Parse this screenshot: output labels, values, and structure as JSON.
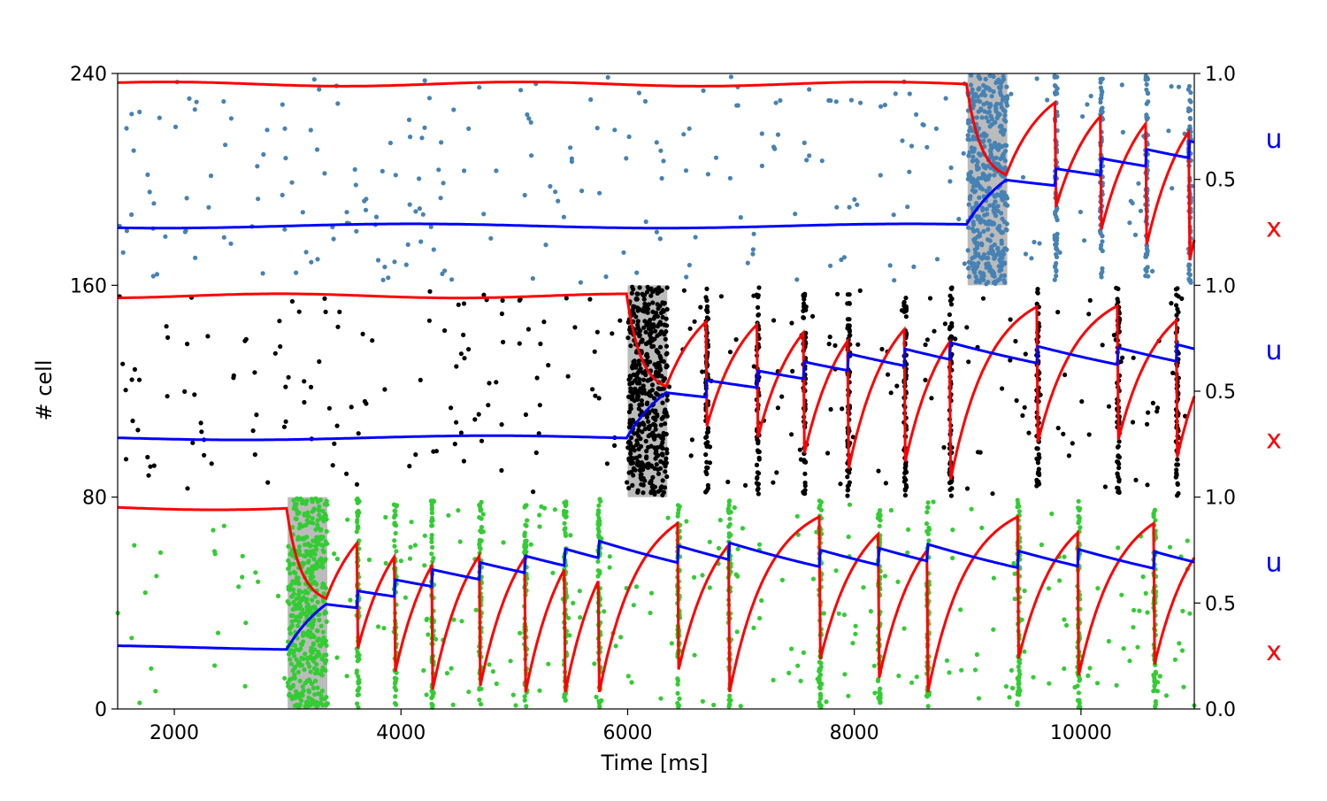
{
  "chart_data": {
    "type": "scatter",
    "xlabel": "Time [ms]",
    "ylabel": "# cell",
    "xlim": [
      1500,
      11000
    ],
    "ylim": [
      0,
      240
    ],
    "x_ticks": [
      2000,
      4000,
      6000,
      8000,
      10000
    ],
    "y_ticks": [
      0,
      80,
      160,
      240
    ],
    "right_axis": {
      "ylim": [
        0.0,
        1.0
      ],
      "tick_labels": [
        "0.0",
        "0.5",
        "1.0"
      ]
    },
    "series_labels": [
      {
        "text": "u",
        "color": "#0000ff"
      },
      {
        "text": "x",
        "color": "#ff0000"
      }
    ],
    "colors": {
      "u": "#0000ff",
      "x": "#ff0000",
      "stim_shade": "#bbbbbb"
    },
    "populations": [
      {
        "cell_range": [
          0,
          80
        ],
        "dot_color": "#33cc33",
        "stimulus": [
          3000,
          3350
        ],
        "reactivations": [
          3000,
          3620,
          3950,
          4280,
          4700,
          5100,
          5450,
          5750,
          6450,
          6900,
          7700,
          8220,
          8650,
          9450,
          9980,
          10650
        ],
        "u_baseline": 0.29,
        "x_baseline": 0.95,
        "u_rest": 0.3,
        "u_jump": 0.08
      },
      {
        "cell_range": [
          80,
          160
        ],
        "dot_color": "#000000",
        "stimulus": [
          6000,
          6350
        ],
        "reactivations": [
          6000,
          6700,
          7150,
          7560,
          7950,
          8450,
          8850,
          9620,
          10330,
          10850
        ],
        "u_baseline": 0.28,
        "x_baseline": 0.95,
        "u_rest": 0.3,
        "u_jump": 0.08
      },
      {
        "cell_range": [
          160,
          240
        ],
        "dot_color": "#4682b4",
        "stimulus": [
          9000,
          9350
        ],
        "reactivations": [
          9000,
          9780,
          10180,
          10580,
          10960
        ],
        "u_baseline": 0.28,
        "x_baseline": 0.95,
        "u_rest": 0.3,
        "u_jump": 0.08
      }
    ]
  }
}
